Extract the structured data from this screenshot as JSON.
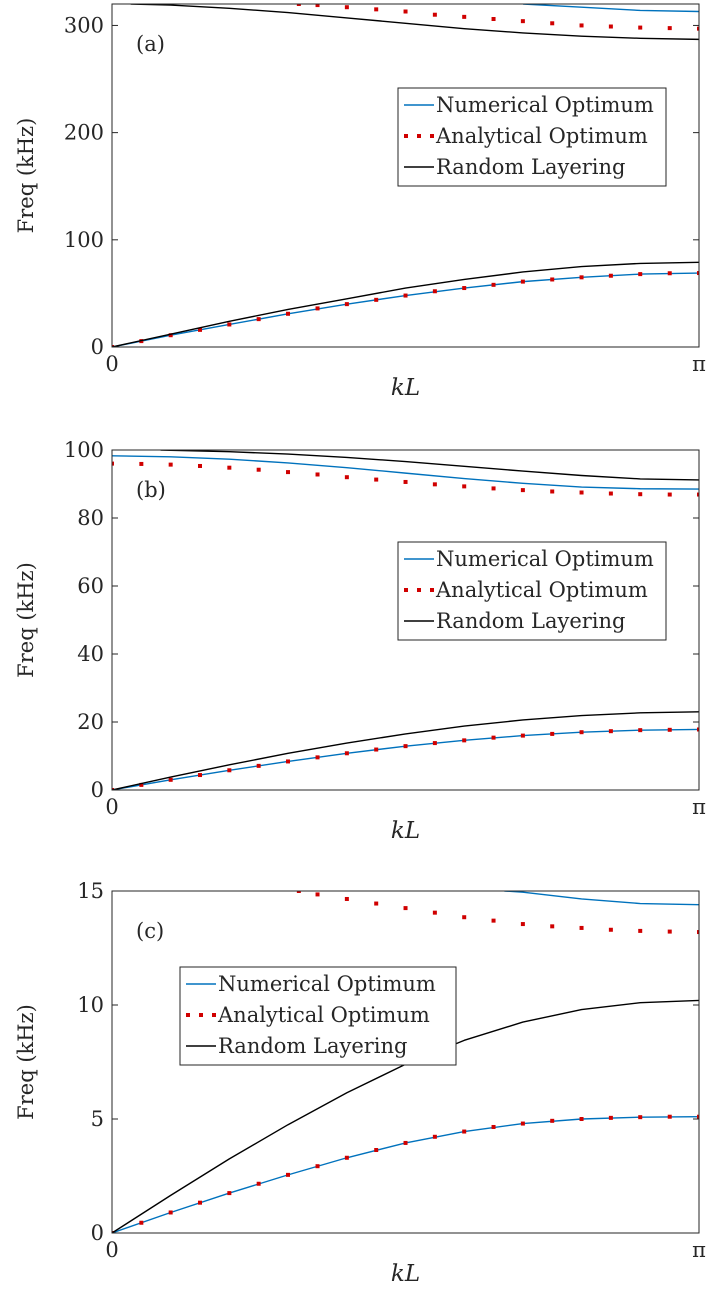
{
  "chart_data": [
    {
      "type": "line",
      "panel_label": "(a)",
      "xlabel": "kL",
      "ylabel": "Freq (kHz)",
      "xlim": [
        0,
        3.1416
      ],
      "ylim": [
        0,
        320
      ],
      "x_ticks": [
        {
          "value": 0,
          "label": "0"
        },
        {
          "value": 3.1416,
          "label": "π"
        }
      ],
      "y_ticks": [
        0,
        100,
        200,
        300
      ],
      "legend_position": "upper-right",
      "series": [
        {
          "name": "Numerical Optimum",
          "style": "solid",
          "color": "#0072BD",
          "lines": [
            {
              "x": [
                0,
                0.314,
                0.628,
                0.942,
                1.257,
                1.571,
                1.885,
                2.199,
                2.513,
                2.827,
                3.1416
              ],
              "y": [
                0,
                11,
                21,
                31,
                40,
                48,
                55,
                61,
                65,
                68,
                69
              ]
            },
            {
              "x": [
                2.2,
                2.513,
                2.827,
                3.1416
              ],
              "y": [
                320,
                317,
                314,
                313
              ]
            }
          ]
        },
        {
          "name": "Analytical Optimum",
          "style": "dotted",
          "color": "#D00000",
          "lines": [
            {
              "x": [
                0,
                0.157,
                0.314,
                0.471,
                0.628,
                0.785,
                0.942,
                1.1,
                1.257,
                1.414,
                1.571,
                1.728,
                1.885,
                2.042,
                2.199,
                2.356,
                2.513,
                2.67,
                2.827,
                2.985,
                3.1416
              ],
              "y": [
                0,
                5.5,
                11,
                16,
                21,
                26,
                31,
                36,
                40,
                44,
                48,
                52,
                55,
                58,
                61,
                63,
                65,
                66.5,
                68,
                68.8,
                69
              ]
            },
            {
              "x": [
                1.0,
                1.1,
                1.257,
                1.414,
                1.571,
                1.728,
                1.885,
                2.042,
                2.199,
                2.356,
                2.513,
                2.67,
                2.827,
                2.985,
                3.1416
              ],
              "y": [
                320,
                319,
                317,
                315,
                313,
                310,
                308,
                306,
                304,
                302,
                300,
                299,
                298,
                297.5,
                297
              ]
            }
          ]
        },
        {
          "name": "Random Layering",
          "style": "solid",
          "color": "#000000",
          "lines": [
            {
              "x": [
                0,
                0.314,
                0.628,
                0.942,
                1.257,
                1.571,
                1.885,
                2.199,
                2.513,
                2.827,
                3.1416
              ],
              "y": [
                0,
                12,
                24,
                35,
                45,
                55,
                63,
                70,
                75,
                78,
                79
              ]
            },
            {
              "x": [
                0.1,
                0.314,
                0.628,
                0.942,
                1.257,
                1.571,
                1.885,
                2.199,
                2.513,
                2.827,
                3.1416
              ],
              "y": [
                320,
                319,
                316,
                312,
                307,
                302,
                297,
                293,
                290,
                288,
                287
              ]
            }
          ]
        }
      ]
    },
    {
      "type": "line",
      "panel_label": "(b)",
      "xlabel": "kL",
      "ylabel": "Freq (kHz)",
      "xlim": [
        0,
        3.1416
      ],
      "ylim": [
        0,
        100
      ],
      "x_ticks": [
        {
          "value": 0,
          "label": "0"
        },
        {
          "value": 3.1416,
          "label": "π"
        }
      ],
      "y_ticks": [
        0,
        20,
        40,
        60,
        80,
        100
      ],
      "legend_position": "right",
      "series": [
        {
          "name": "Numerical Optimum",
          "style": "solid",
          "color": "#0072BD",
          "lines": [
            {
              "x": [
                0,
                0.314,
                0.628,
                0.942,
                1.257,
                1.571,
                1.885,
                2.199,
                2.513,
                2.827,
                3.1416
              ],
              "y": [
                0,
                3,
                5.8,
                8.4,
                10.8,
                12.9,
                14.6,
                16,
                17,
                17.6,
                17.8
              ]
            },
            {
              "x": [
                0,
                0.314,
                0.628,
                0.942,
                1.257,
                1.571,
                1.885,
                2.199,
                2.513,
                2.827,
                3.1416
              ],
              "y": [
                98.3,
                98,
                97.3,
                96.2,
                94.8,
                93.2,
                91.6,
                90.2,
                89.1,
                88.6,
                88.5
              ]
            }
          ]
        },
        {
          "name": "Analytical Optimum",
          "style": "dotted",
          "color": "#D00000",
          "lines": [
            {
              "x": [
                0,
                0.157,
                0.314,
                0.471,
                0.628,
                0.785,
                0.942,
                1.1,
                1.257,
                1.414,
                1.571,
                1.728,
                1.885,
                2.042,
                2.199,
                2.356,
                2.513,
                2.67,
                2.827,
                2.985,
                3.1416
              ],
              "y": [
                0,
                1.5,
                3,
                4.4,
                5.8,
                7.1,
                8.4,
                9.6,
                10.8,
                11.9,
                12.9,
                13.8,
                14.6,
                15.4,
                16,
                16.5,
                17,
                17.3,
                17.6,
                17.7,
                17.8
              ]
            },
            {
              "x": [
                0,
                0.157,
                0.314,
                0.471,
                0.628,
                0.785,
                0.942,
                1.1,
                1.257,
                1.414,
                1.571,
                1.728,
                1.885,
                2.042,
                2.199,
                2.356,
                2.513,
                2.67,
                2.827,
                2.985,
                3.1416
              ],
              "y": [
                96,
                95.9,
                95.7,
                95.3,
                94.8,
                94.2,
                93.5,
                92.8,
                92.0,
                91.3,
                90.6,
                89.9,
                89.3,
                88.7,
                88.2,
                87.8,
                87.5,
                87.2,
                87.0,
                86.9,
                86.9
              ]
            }
          ]
        },
        {
          "name": "Random Layering",
          "style": "solid",
          "color": "#000000",
          "lines": [
            {
              "x": [
                0,
                0.314,
                0.628,
                0.942,
                1.257,
                1.571,
                1.885,
                2.199,
                2.513,
                2.827,
                3.1416
              ],
              "y": [
                0,
                3.8,
                7.4,
                10.8,
                13.8,
                16.5,
                18.8,
                20.6,
                21.9,
                22.7,
                23
              ]
            },
            {
              "x": [
                0.26,
                0.314,
                0.628,
                0.942,
                1.257,
                1.571,
                1.885,
                2.199,
                2.513,
                2.827,
                3.1416
              ],
              "y": [
                100,
                99.9,
                99.5,
                98.8,
                97.8,
                96.6,
                95.2,
                93.8,
                92.5,
                91.5,
                91.2
              ]
            }
          ]
        }
      ]
    },
    {
      "type": "line",
      "panel_label": "(c)",
      "xlabel": "kL",
      "ylabel": "Freq (kHz)",
      "xlim": [
        0,
        3.1416
      ],
      "ylim": [
        0,
        15
      ],
      "x_ticks": [
        {
          "value": 0,
          "label": "0"
        },
        {
          "value": 3.1416,
          "label": "π"
        }
      ],
      "y_ticks": [
        0,
        5,
        10,
        15
      ],
      "legend_position": "upper-left",
      "series": [
        {
          "name": "Numerical Optimum",
          "style": "solid",
          "color": "#0072BD",
          "lines": [
            {
              "x": [
                0,
                0.314,
                0.628,
                0.942,
                1.257,
                1.571,
                1.885,
                2.199,
                2.513,
                2.827,
                3.1416
              ],
              "y": [
                0,
                0.9,
                1.75,
                2.55,
                3.3,
                3.95,
                4.45,
                4.8,
                5.0,
                5.08,
                5.1
              ]
            },
            {
              "x": [
                2.1,
                2.199,
                2.513,
                2.827,
                3.1416
              ],
              "y": [
                15,
                14.95,
                14.65,
                14.45,
                14.4
              ]
            }
          ]
        },
        {
          "name": "Analytical Optimum",
          "style": "dotted",
          "color": "#D00000",
          "lines": [
            {
              "x": [
                0,
                0.157,
                0.314,
                0.471,
                0.628,
                0.785,
                0.942,
                1.1,
                1.257,
                1.414,
                1.571,
                1.728,
                1.885,
                2.042,
                2.199,
                2.356,
                2.513,
                2.67,
                2.827,
                2.985,
                3.1416
              ],
              "y": [
                0,
                0.45,
                0.9,
                1.33,
                1.75,
                2.16,
                2.55,
                2.93,
                3.3,
                3.64,
                3.95,
                4.22,
                4.45,
                4.65,
                4.8,
                4.92,
                5.0,
                5.05,
                5.08,
                5.1,
                5.1
              ]
            },
            {
              "x": [
                1.0,
                1.1,
                1.257,
                1.414,
                1.571,
                1.728,
                1.885,
                2.042,
                2.199,
                2.356,
                2.513,
                2.67,
                2.827,
                2.985,
                3.1416
              ],
              "y": [
                15,
                14.85,
                14.65,
                14.45,
                14.25,
                14.05,
                13.85,
                13.7,
                13.55,
                13.45,
                13.38,
                13.3,
                13.25,
                13.22,
                13.2
              ]
            }
          ]
        },
        {
          "name": "Random Layering",
          "style": "solid",
          "color": "#000000",
          "lines": [
            {
              "x": [
                0,
                0.314,
                0.628,
                0.942,
                1.257,
                1.571,
                1.885,
                2.199,
                2.513,
                2.827,
                3.1416
              ],
              "y": [
                0,
                1.65,
                3.25,
                4.75,
                6.15,
                7.4,
                8.45,
                9.25,
                9.8,
                10.1,
                10.2
              ]
            }
          ]
        }
      ]
    }
  ]
}
